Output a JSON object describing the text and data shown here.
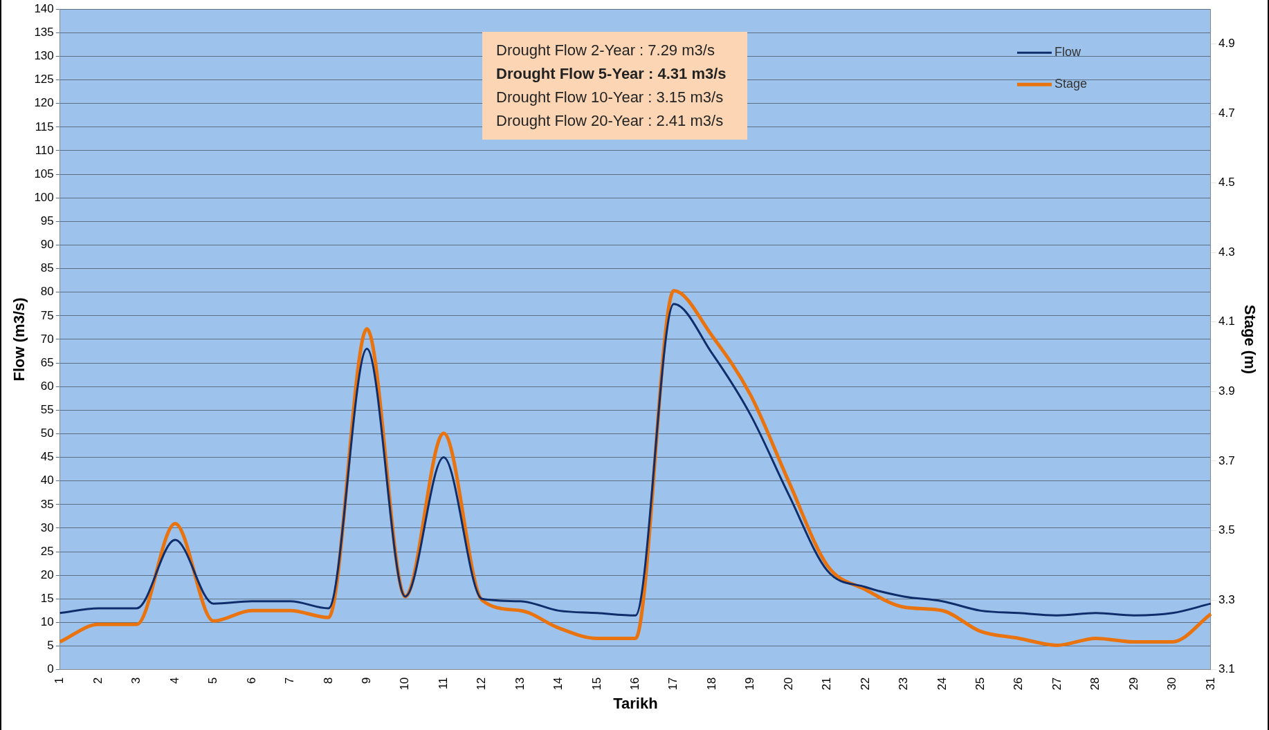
{
  "chart_data": {
    "type": "line",
    "xlabel": "Tarikh",
    "ylabel": "Flow (m3/s)",
    "y2label": "Stage (m)",
    "categories": [
      "1",
      "2",
      "3",
      "4",
      "5",
      "6",
      "7",
      "8",
      "9",
      "10",
      "11",
      "12",
      "13",
      "14",
      "15",
      "16",
      "17",
      "18",
      "19",
      "20",
      "21",
      "22",
      "23",
      "24",
      "25",
      "26",
      "27",
      "28",
      "29",
      "30",
      "31"
    ],
    "series": [
      {
        "name": "Flow",
        "color": "#0f2d6b",
        "values": [
          12,
          13,
          13,
          27.5,
          14,
          14.5,
          14.5,
          13,
          68,
          15.5,
          45,
          15,
          14.5,
          12.5,
          12,
          11.5,
          77.5,
          67,
          54,
          37,
          21,
          17.5,
          15.5,
          14.5,
          12.5,
          12,
          11.5,
          12,
          11.5,
          12,
          14
        ]
      },
      {
        "name": "Stage",
        "color": "#e8730f",
        "axis": "y2",
        "values": [
          3.18,
          3.23,
          3.23,
          3.52,
          3.24,
          3.27,
          3.27,
          3.25,
          4.08,
          3.31,
          3.78,
          3.3,
          3.27,
          3.22,
          3.19,
          3.19,
          4.19,
          4.06,
          3.89,
          3.64,
          3.4,
          3.33,
          3.28,
          3.27,
          3.21,
          3.19,
          3.17,
          3.19,
          3.18,
          3.18,
          3.26
        ]
      }
    ],
    "ylim": [
      0,
      140
    ],
    "yticks": [
      0,
      5,
      10,
      15,
      20,
      25,
      30,
      35,
      40,
      45,
      50,
      55,
      60,
      65,
      70,
      75,
      80,
      85,
      90,
      95,
      100,
      105,
      110,
      115,
      120,
      125,
      130,
      135,
      140
    ],
    "y2lim": [
      3.1,
      5.0
    ],
    "y2ticks": [
      3.1,
      3.3,
      3.5,
      3.7,
      3.9,
      4.1,
      4.3,
      4.5,
      4.7,
      4.9
    ],
    "grid": "y",
    "legend": "top right",
    "marker": "none",
    "line_style": "solid",
    "annotations": [
      "Drought Flow 2-Year : 7.29 m3/s",
      "Drought Flow 5-Year : 4.31 m3/s",
      "Drought Flow 10-Year : 3.15 m3/s",
      "Drought Flow 20-Year : 2.41 m3/s"
    ]
  }
}
